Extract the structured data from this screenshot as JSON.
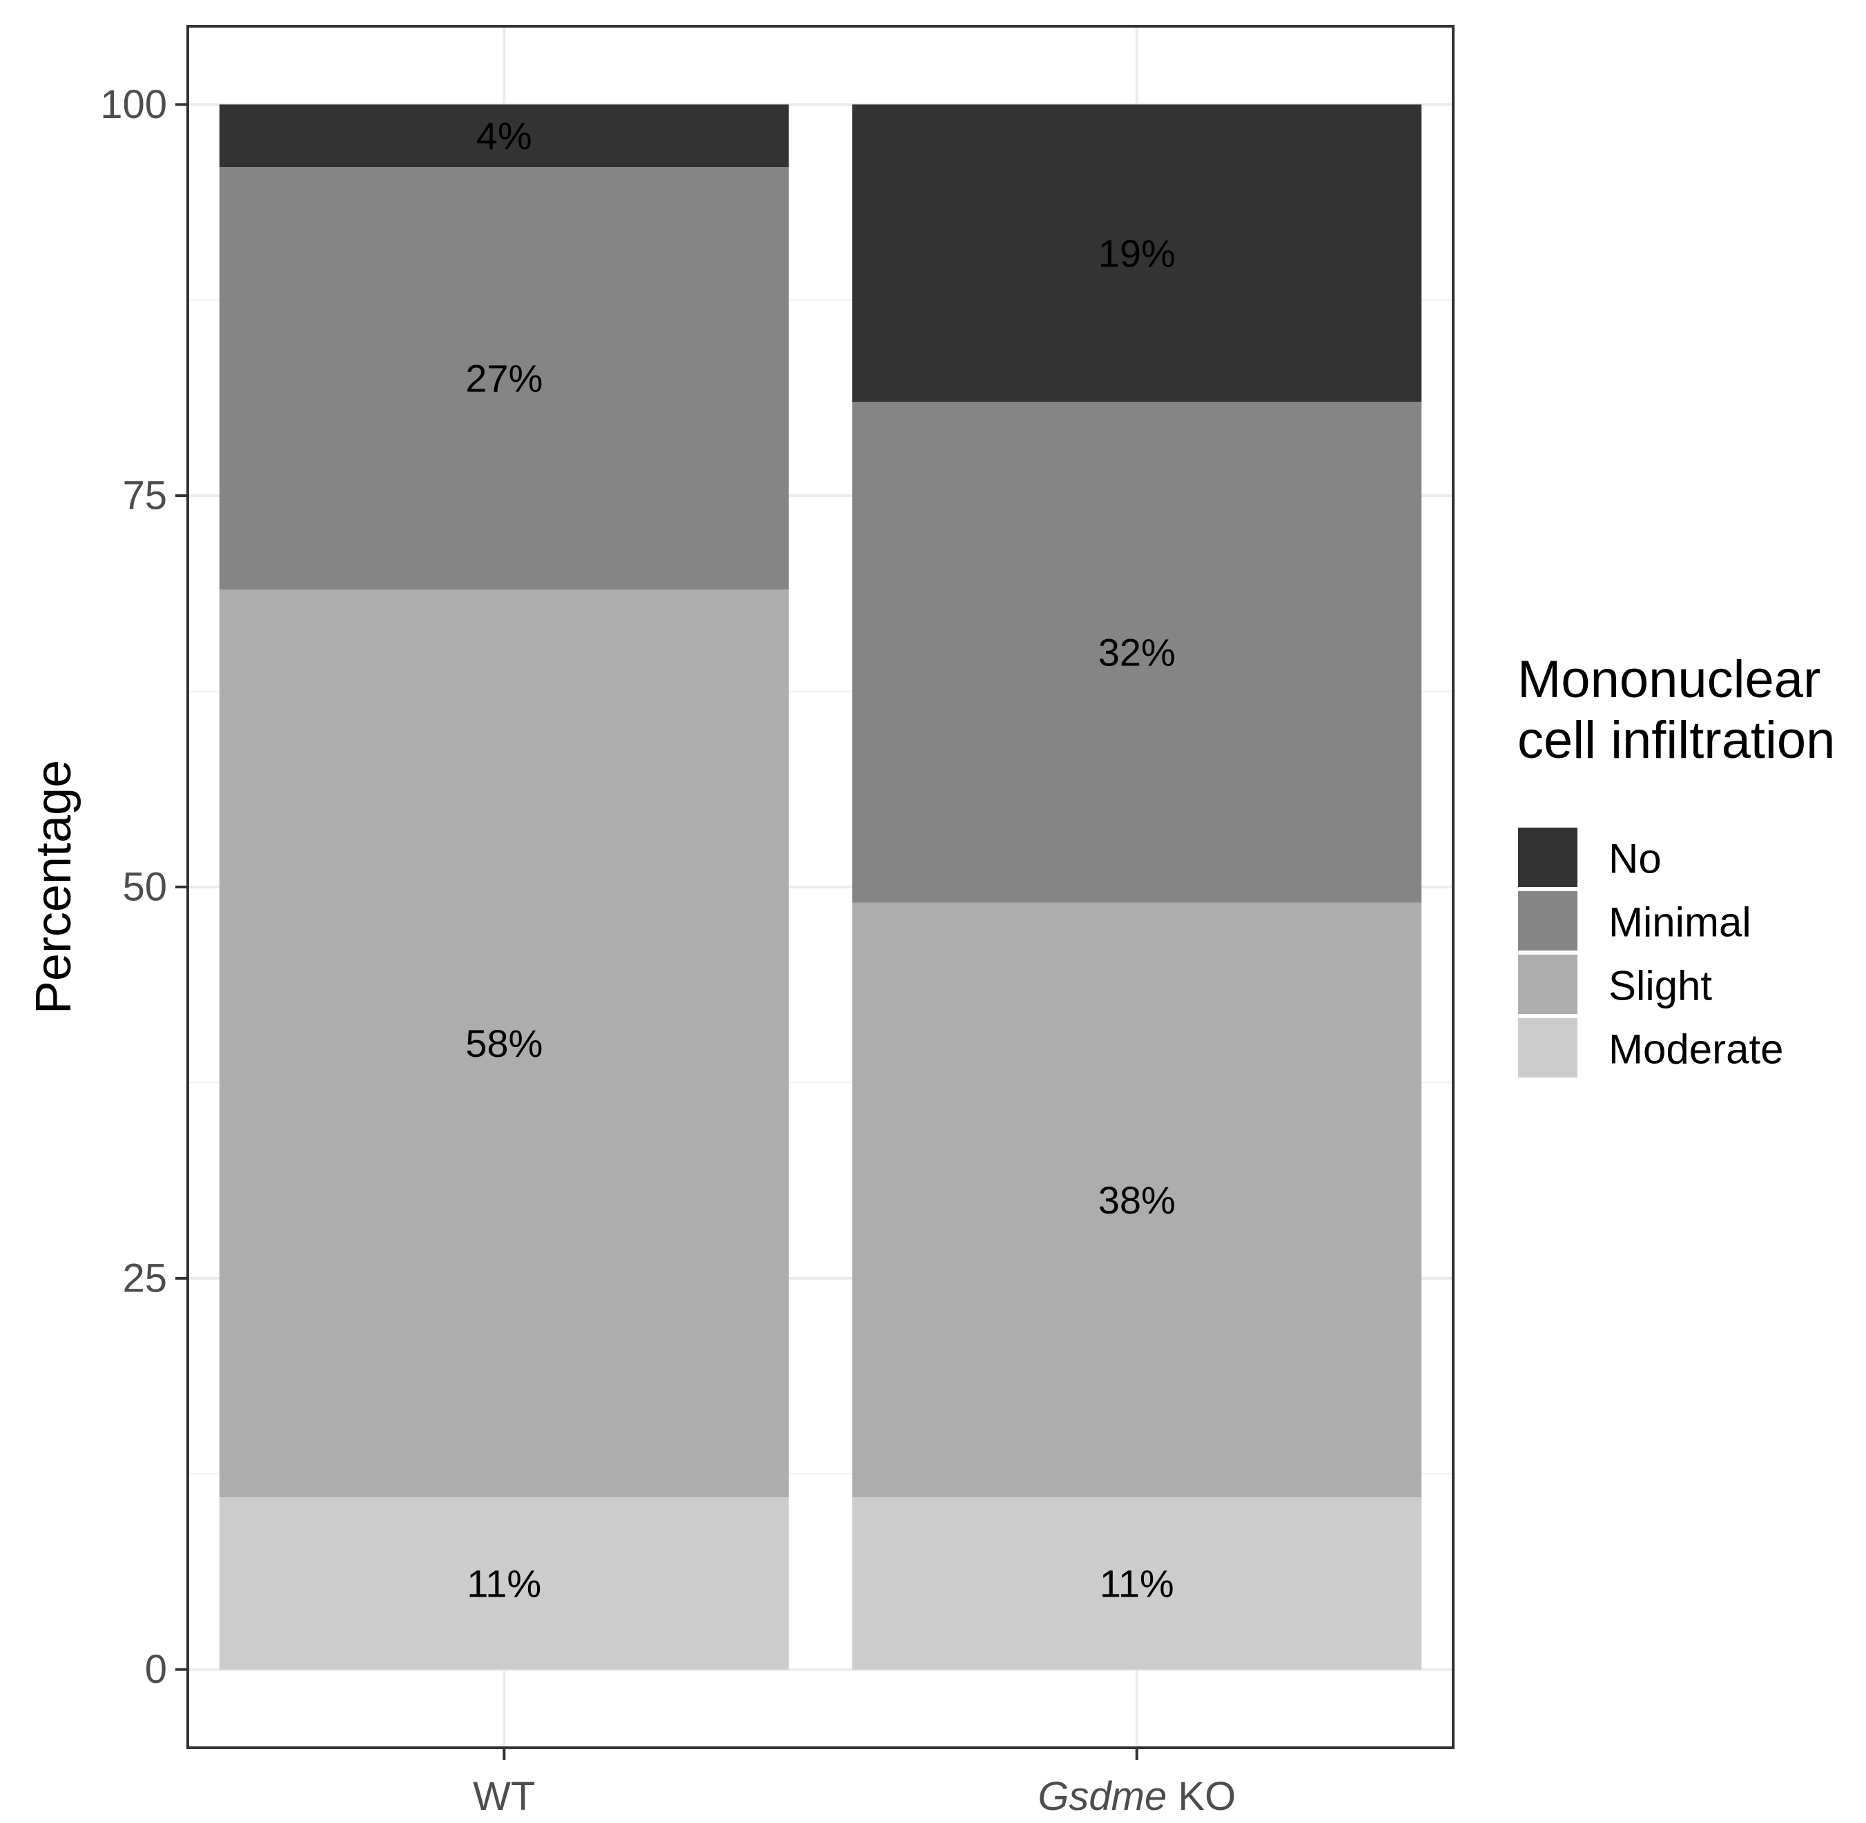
{
  "chart_data": {
    "type": "bar",
    "stacked": true,
    "categories": [
      "WT",
      "Gsdme KO"
    ],
    "category_labels": [
      {
        "prefix": "",
        "italic": "",
        "suffix": "WT"
      },
      {
        "prefix": "",
        "italic": "Gsdme",
        "suffix": " KO"
      }
    ],
    "series": [
      {
        "name": "Moderate",
        "values": [
          11,
          11
        ],
        "labels": [
          "11%",
          "11%"
        ],
        "color": "#cccccc"
      },
      {
        "name": "Slight",
        "values": [
          58,
          38
        ],
        "labels": [
          "58%",
          "38%"
        ],
        "color": "#adadad"
      },
      {
        "name": "Minimal",
        "values": [
          27,
          32
        ],
        "labels": [
          "27%",
          "32%"
        ],
        "color": "#858585"
      },
      {
        "name": "No",
        "values": [
          4,
          19
        ],
        "labels": [
          "4%",
          "19%"
        ],
        "color": "#333333"
      }
    ],
    "xlabel": "",
    "ylabel": "Percentage",
    "ylim": [
      -5,
      105
    ],
    "yticks": [
      0,
      25,
      50,
      75,
      100
    ],
    "grid": true,
    "legend": {
      "title_lines": [
        "Mononuclear",
        "cell infiltration"
      ],
      "order": [
        "No",
        "Minimal",
        "Slight",
        "Moderate"
      ],
      "placement": "right"
    },
    "colors": {
      "grid_major": "#ebebeb",
      "grid_minor": "#f2f2f2",
      "panel_border": "#333333",
      "tick_label": "#4d4d4d"
    }
  }
}
